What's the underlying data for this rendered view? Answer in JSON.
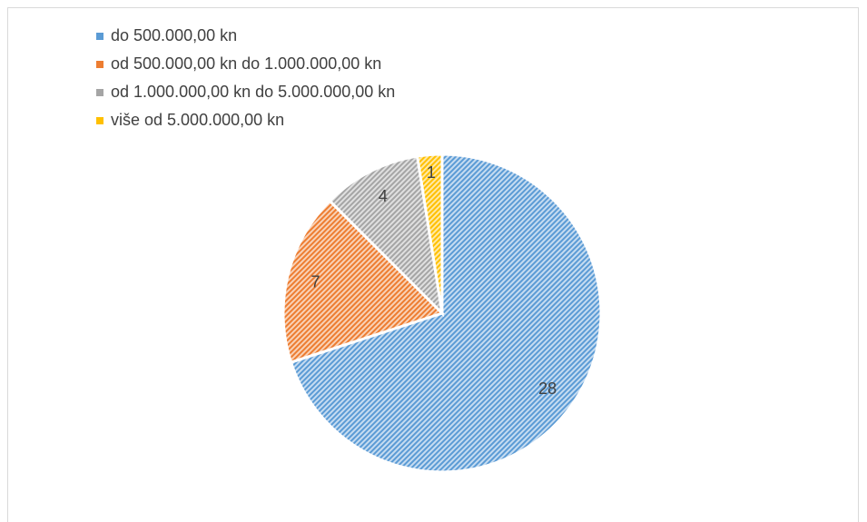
{
  "chart_data": {
    "type": "pie",
    "categories": [
      "do 500.000,00 kn",
      "od 500.000,00 kn do 1.000.000,00 kn",
      "od 1.000.000,00 kn do 5.000.000,00 kn",
      "više od 5.000.000,00 kn"
    ],
    "values": [
      28,
      7,
      4,
      1
    ],
    "colors": [
      "#5b9bd5",
      "#ed7d31",
      "#a5a5a5",
      "#ffc000"
    ],
    "legend": "top-left"
  }
}
